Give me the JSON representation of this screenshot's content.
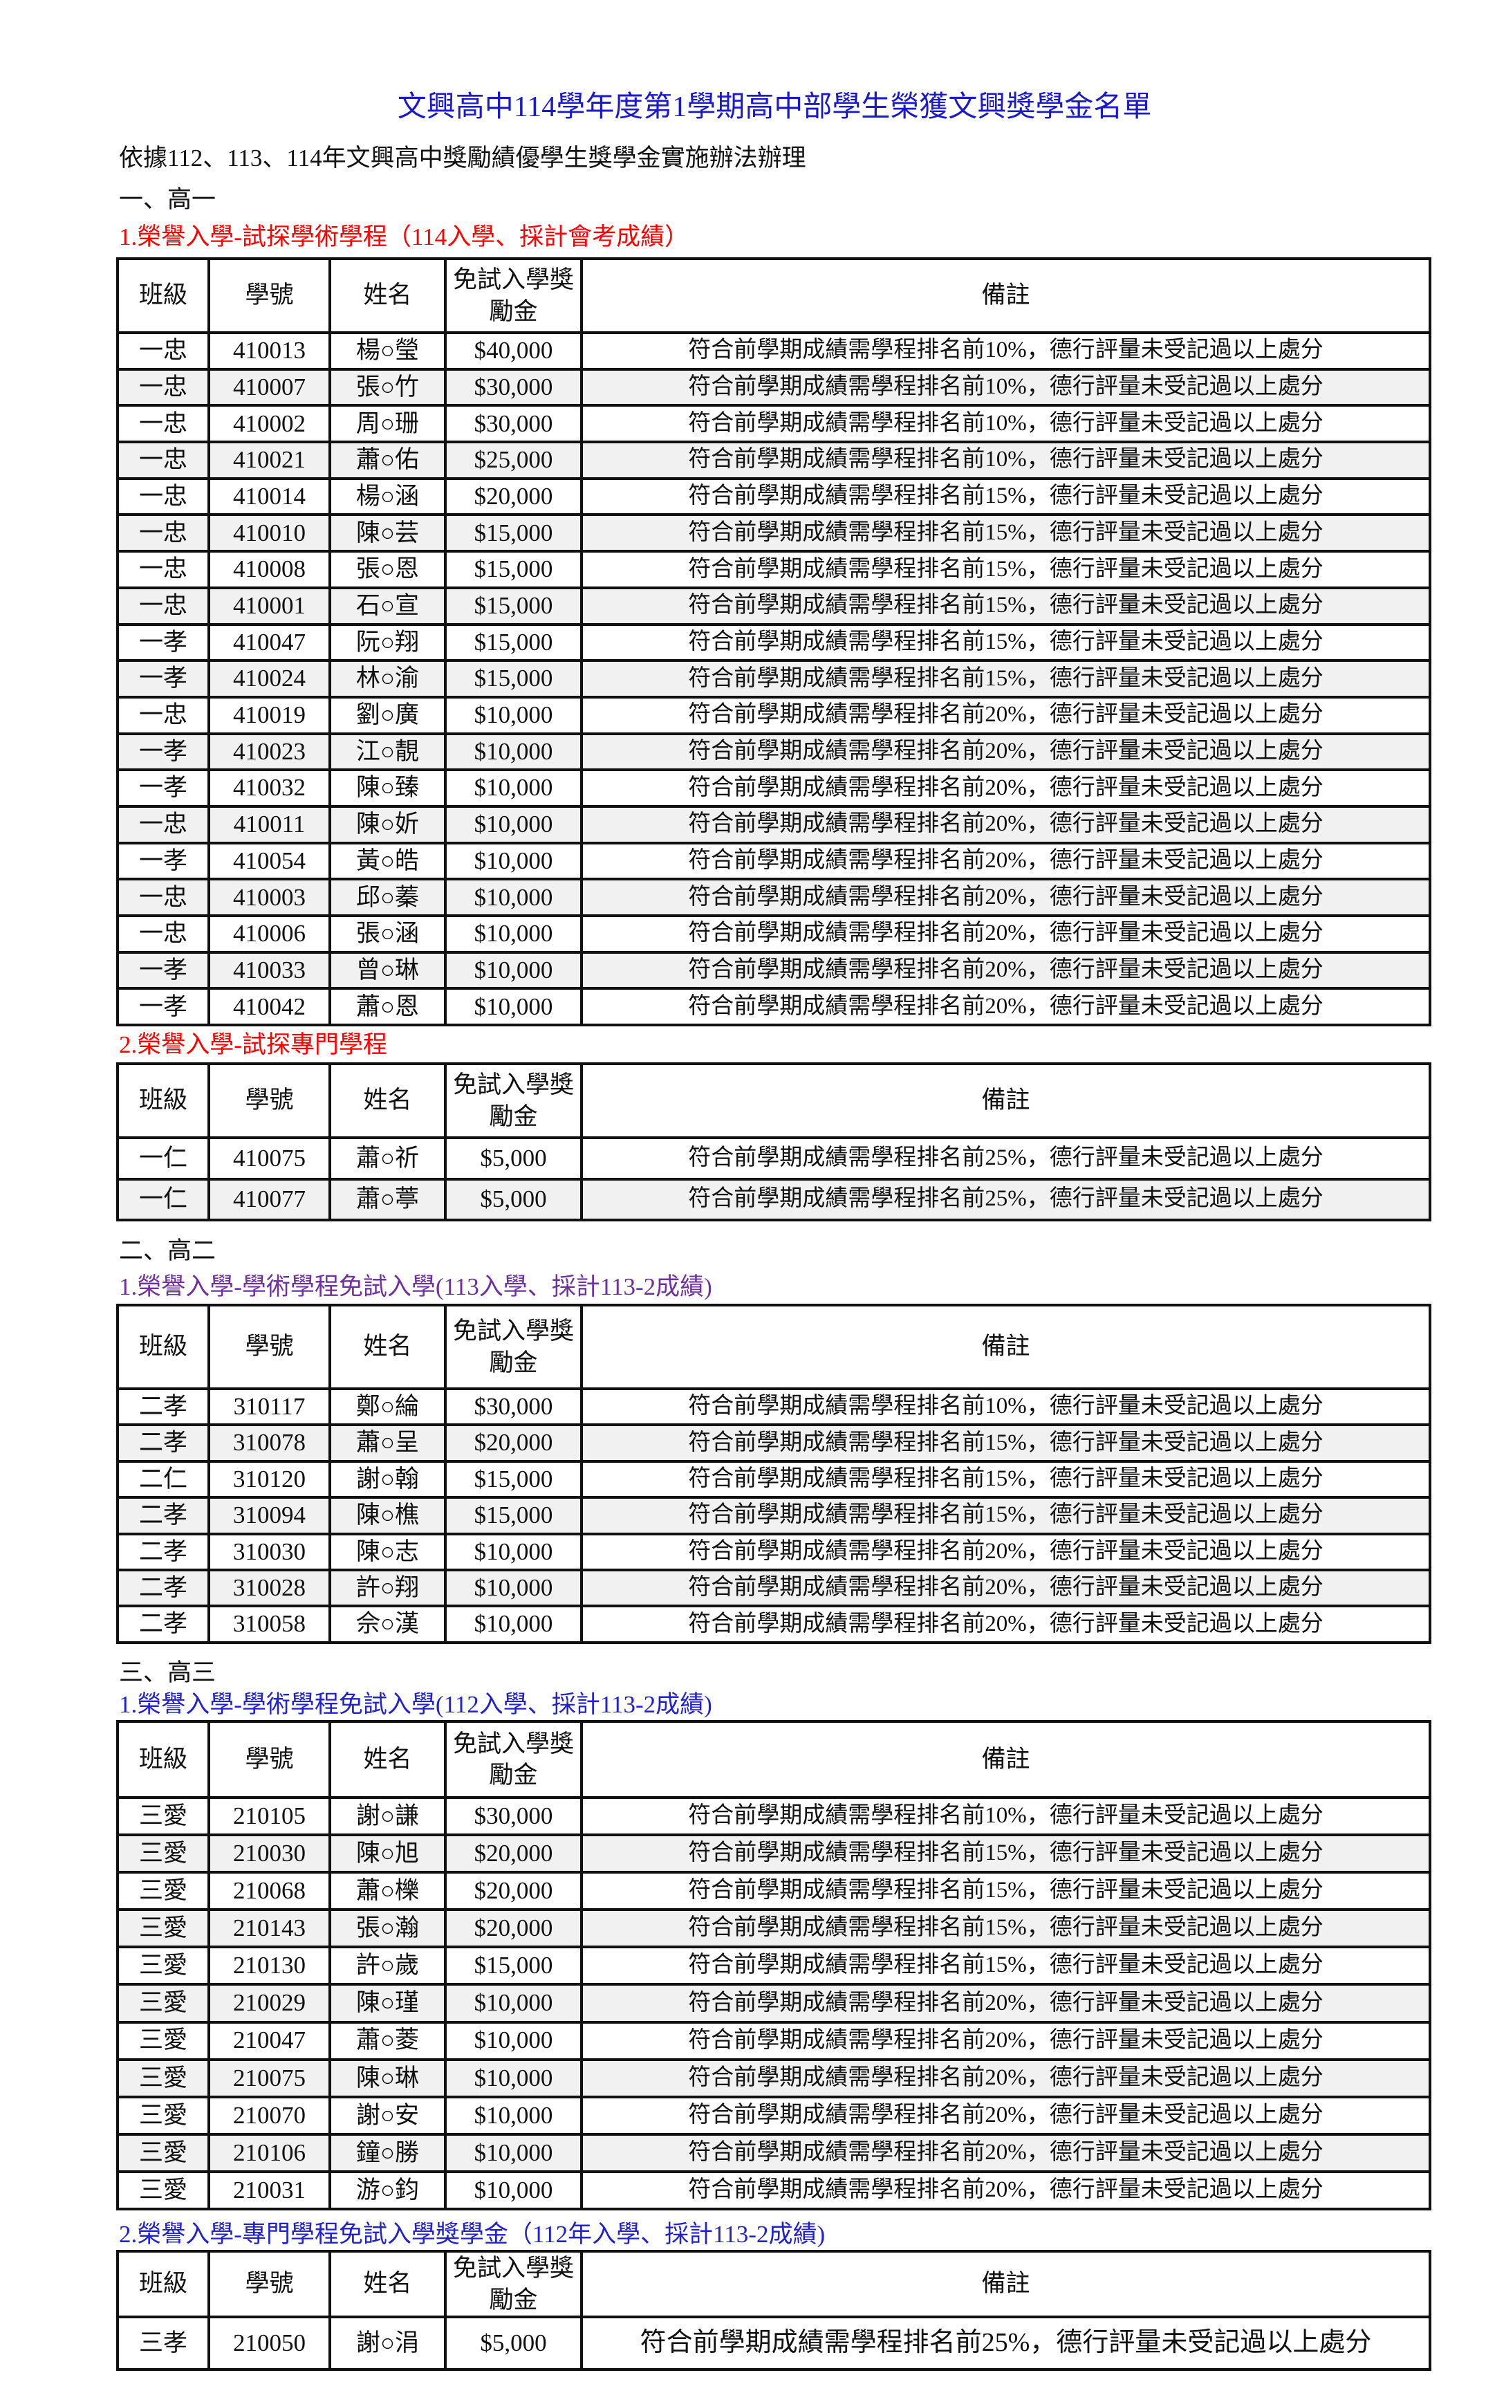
{
  "title": "文興高中114學年度第1學期高中部學生榮獲文興獎學金名單",
  "basis": "依據112、113、114年文興高中獎勵績優學生獎學金實施辦法辦理",
  "colors": {
    "title": "#1a1acc",
    "grade1_heading": "#ff0000",
    "grade2_heading": "#7030a0",
    "grade3_heading": "#2222cc",
    "alt_row": "#f1f1f1"
  },
  "headers": {
    "class": "班級",
    "id": "學號",
    "name": "姓名",
    "amount": "免試入學獎勵金",
    "remark": "備註"
  },
  "sections": [
    {
      "label": "一、高一"
    },
    {
      "label": "二、高二"
    },
    {
      "label": "三、高三"
    }
  ],
  "tables": [
    {
      "heading": "1.榮譽入學-試探學術學程（114入學、採計會考成績）",
      "rows": [
        [
          "一忠",
          "410013",
          "楊○瑩",
          "$40,000",
          "符合前學期成績需學程排名前10%，德行評量未受記過以上處分"
        ],
        [
          "一忠",
          "410007",
          "張○竹",
          "$30,000",
          "符合前學期成績需學程排名前10%，德行評量未受記過以上處分"
        ],
        [
          "一忠",
          "410002",
          "周○珊",
          "$30,000",
          "符合前學期成績需學程排名前10%，德行評量未受記過以上處分"
        ],
        [
          "一忠",
          "410021",
          "蕭○佑",
          "$25,000",
          "符合前學期成績需學程排名前10%，德行評量未受記過以上處分"
        ],
        [
          "一忠",
          "410014",
          "楊○涵",
          "$20,000",
          "符合前學期成績需學程排名前15%，德行評量未受記過以上處分"
        ],
        [
          "一忠",
          "410010",
          "陳○芸",
          "$15,000",
          "符合前學期成績需學程排名前15%，德行評量未受記過以上處分"
        ],
        [
          "一忠",
          "410008",
          "張○恩",
          "$15,000",
          "符合前學期成績需學程排名前15%，德行評量未受記過以上處分"
        ],
        [
          "一忠",
          "410001",
          "石○宣",
          "$15,000",
          "符合前學期成績需學程排名前15%，德行評量未受記過以上處分"
        ],
        [
          "一孝",
          "410047",
          "阮○翔",
          "$15,000",
          "符合前學期成績需學程排名前15%，德行評量未受記過以上處分"
        ],
        [
          "一孝",
          "410024",
          "林○渝",
          "$15,000",
          "符合前學期成績需學程排名前15%，德行評量未受記過以上處分"
        ],
        [
          "一忠",
          "410019",
          "劉○廣",
          "$10,000",
          "符合前學期成績需學程排名前20%，德行評量未受記過以上處分"
        ],
        [
          "一孝",
          "410023",
          "江○靚",
          "$10,000",
          "符合前學期成績需學程排名前20%，德行評量未受記過以上處分"
        ],
        [
          "一孝",
          "410032",
          "陳○臻",
          "$10,000",
          "符合前學期成績需學程排名前20%，德行評量未受記過以上處分"
        ],
        [
          "一忠",
          "410011",
          "陳○妡",
          "$10,000",
          "符合前學期成績需學程排名前20%，德行評量未受記過以上處分"
        ],
        [
          "一孝",
          "410054",
          "黃○皓",
          "$10,000",
          "符合前學期成績需學程排名前20%，德行評量未受記過以上處分"
        ],
        [
          "一忠",
          "410003",
          "邱○蓁",
          "$10,000",
          "符合前學期成績需學程排名前20%，德行評量未受記過以上處分"
        ],
        [
          "一忠",
          "410006",
          "張○涵",
          "$10,000",
          "符合前學期成績需學程排名前20%，德行評量未受記過以上處分"
        ],
        [
          "一孝",
          "410033",
          "曾○琳",
          "$10,000",
          "符合前學期成績需學程排名前20%，德行評量未受記過以上處分"
        ],
        [
          "一孝",
          "410042",
          "蕭○恩",
          "$10,000",
          "符合前學期成績需學程排名前20%，德行評量未受記過以上處分"
        ]
      ]
    },
    {
      "heading": "2.榮譽入學-試探專門學程",
      "rows": [
        [
          "一仁",
          "410075",
          "蕭○祈",
          "$5,000",
          "符合前學期成績需學程排名前25%，德行評量未受記過以上處分"
        ],
        [
          "一仁",
          "410077",
          "蕭○葶",
          "$5,000",
          "符合前學期成績需學程排名前25%，德行評量未受記過以上處分"
        ]
      ]
    },
    {
      "heading": "1.榮譽入學-學術學程免試入學(113入學、採計113-2成績)",
      "rows": [
        [
          "二孝",
          "310117",
          "鄭○綸",
          "$30,000",
          "符合前學期成績需學程排名前10%，德行評量未受記過以上處分"
        ],
        [
          "二孝",
          "310078",
          "蕭○呈",
          "$20,000",
          "符合前學期成績需學程排名前15%，德行評量未受記過以上處分"
        ],
        [
          "二仁",
          "310120",
          "謝○翰",
          "$15,000",
          "符合前學期成績需學程排名前15%，德行評量未受記過以上處分"
        ],
        [
          "二孝",
          "310094",
          "陳○樵",
          "$15,000",
          "符合前學期成績需學程排名前15%，德行評量未受記過以上處分"
        ],
        [
          "二孝",
          "310030",
          "陳○志",
          "$10,000",
          "符合前學期成績需學程排名前20%，德行評量未受記過以上處分"
        ],
        [
          "二孝",
          "310028",
          "許○翔",
          "$10,000",
          "符合前學期成績需學程排名前20%，德行評量未受記過以上處分"
        ],
        [
          "二孝",
          "310058",
          "佘○漢",
          "$10,000",
          "符合前學期成績需學程排名前20%，德行評量未受記過以上處分"
        ]
      ]
    },
    {
      "heading": "1.榮譽入學-學術學程免試入學(112入學、採計113-2成績)",
      "rows": [
        [
          "三愛",
          "210105",
          "謝○謙",
          "$30,000",
          "符合前學期成績需學程排名前10%，德行評量未受記過以上處分"
        ],
        [
          "三愛",
          "210030",
          "陳○旭",
          "$20,000",
          "符合前學期成績需學程排名前15%，德行評量未受記過以上處分"
        ],
        [
          "三愛",
          "210068",
          "蕭○櫟",
          "$20,000",
          "符合前學期成績需學程排名前15%，德行評量未受記過以上處分"
        ],
        [
          "三愛",
          "210143",
          "張○瀚",
          "$20,000",
          "符合前學期成績需學程排名前15%，德行評量未受記過以上處分"
        ],
        [
          "三愛",
          "210130",
          "許○歲",
          "$15,000",
          "符合前學期成績需學程排名前15%，德行評量未受記過以上處分"
        ],
        [
          "三愛",
          "210029",
          "陳○瑾",
          "$10,000",
          "符合前學期成績需學程排名前20%，德行評量未受記過以上處分"
        ],
        [
          "三愛",
          "210047",
          "蕭○菱",
          "$10,000",
          "符合前學期成績需學程排名前20%，德行評量未受記過以上處分"
        ],
        [
          "三愛",
          "210075",
          "陳○琳",
          "$10,000",
          "符合前學期成績需學程排名前20%，德行評量未受記過以上處分"
        ],
        [
          "三愛",
          "210070",
          "謝○安",
          "$10,000",
          "符合前學期成績需學程排名前20%，德行評量未受記過以上處分"
        ],
        [
          "三愛",
          "210106",
          "鐘○勝",
          "$10,000",
          "符合前學期成績需學程排名前20%，德行評量未受記過以上處分"
        ],
        [
          "三愛",
          "210031",
          "游○鈞",
          "$10,000",
          "符合前學期成績需學程排名前20%，德行評量未受記過以上處分"
        ]
      ]
    },
    {
      "heading": "2.榮譽入學-專門學程免試入學獎學金（112年入學、採計113-2成績)",
      "rows": [
        [
          "三孝",
          "210050",
          "謝○涓",
          "$5,000",
          "符合前學期成績需學程排名前25%，德行評量未受記過以上處分"
        ]
      ]
    }
  ]
}
